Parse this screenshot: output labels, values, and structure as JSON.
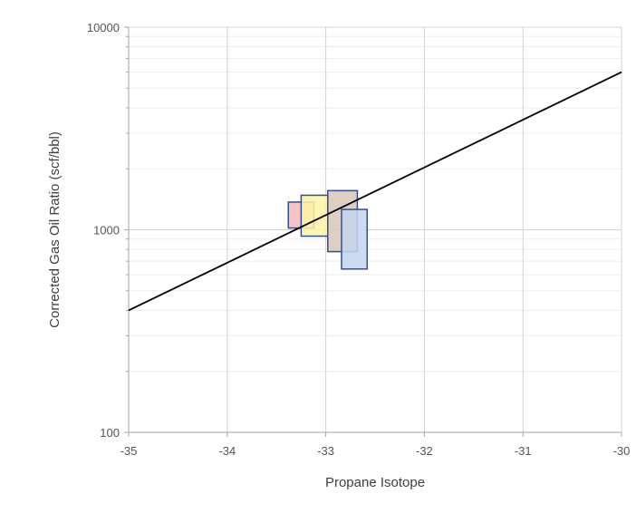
{
  "chart_data": {
    "type": "scatter",
    "title": "",
    "xlabel": "Propane Isotope",
    "ylabel": "Corrected Gas Oil Ratio (scf/bbl)",
    "xlim": [
      -35,
      -30
    ],
    "ylim": [
      100,
      10000
    ],
    "y_scale": "log",
    "x_ticks": [
      -35,
      -34,
      -33,
      -32,
      -31,
      -30
    ],
    "x_tick_labels": [
      "-35",
      "-34",
      "-33",
      "-32",
      "-31",
      "-30"
    ],
    "y_ticks": [
      100,
      1000,
      10000
    ],
    "y_tick_labels": [
      "100",
      "1000",
      "10000"
    ],
    "grid": true,
    "legend": "none",
    "trend_line": {
      "x": [
        -35,
        -30
      ],
      "y": [
        400,
        6000
      ],
      "color": "#000000"
    },
    "boxes": [
      {
        "x0": -33.38,
        "x1": -33.12,
        "y0": 1020,
        "y1": 1370,
        "fill": "#f2b8b8",
        "stroke": "#2f4f8f"
      },
      {
        "x0": -33.25,
        "x1": -32.98,
        "y0": 930,
        "y1": 1480,
        "fill": "#fdf5a6",
        "stroke": "#2f4f8f"
      },
      {
        "x0": -32.98,
        "x1": -32.68,
        "y0": 780,
        "y1": 1560,
        "fill": "#d9c7b8",
        "stroke": "#2f4f8f"
      },
      {
        "x0": -32.84,
        "x1": -32.58,
        "y0": 640,
        "y1": 1260,
        "fill": "#c5d3ef",
        "stroke": "#2f4f8f"
      }
    ]
  }
}
